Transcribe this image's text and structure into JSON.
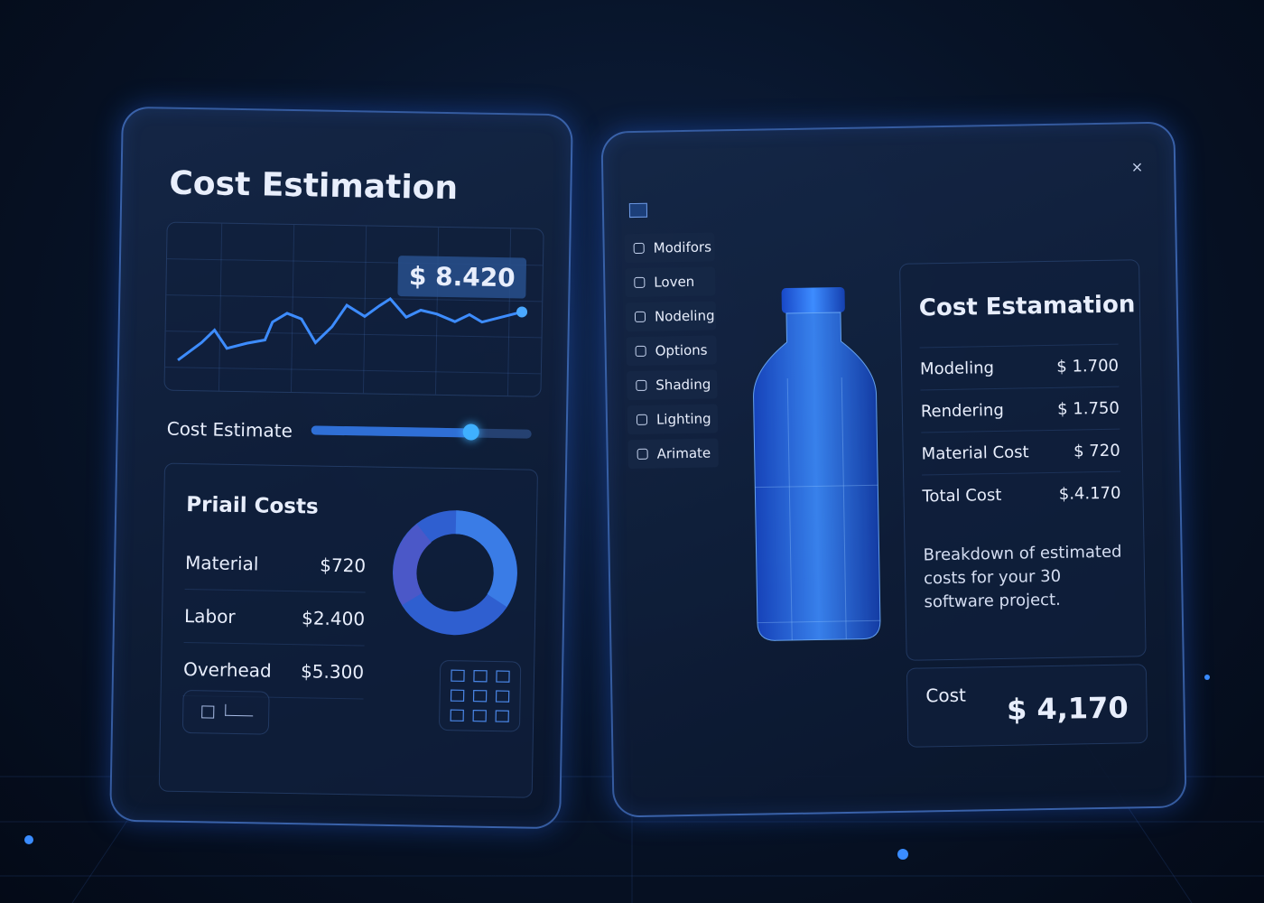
{
  "left_panel": {
    "title": "Cost Estimation",
    "price_badge": "$ 8.420",
    "slider_label": "Cost Estimate",
    "section_title": "Priail Costs",
    "items": [
      {
        "label": "Material",
        "value": "$720"
      },
      {
        "label": "Labor",
        "value": "$2.400"
      },
      {
        "label": "Overhead",
        "value": "$5.300"
      }
    ]
  },
  "right_panel": {
    "close": "×",
    "menu": [
      "Modifors",
      "Loven",
      "Nodeling",
      "Options",
      "Shading",
      "Lighting",
      "Arimate"
    ],
    "card": {
      "title": "Cost Estamation",
      "rows": [
        {
          "label": "Modeling",
          "value": "$ 1.700"
        },
        {
          "label": "Rendering",
          "value": "$ 1.750"
        },
        {
          "label": "Material Cost",
          "value": "$ 720"
        },
        {
          "label": "Total Cost",
          "value": "$.4.170"
        }
      ],
      "description": "Breakdown of estimated costs for your 30 software project.",
      "cost_label": "Cost",
      "cost_value": "$ 4,170"
    }
  }
}
